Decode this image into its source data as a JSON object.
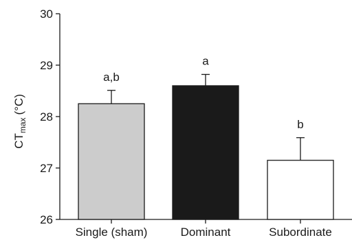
{
  "chart_data": {
    "type": "bar",
    "title": "",
    "ylabel_main": "CT",
    "ylabel_sub": "max",
    "ylabel_unit": "(°C)",
    "xlabel": "",
    "ylim": [
      26,
      30
    ],
    "yticks": [
      "26",
      "27",
      "28",
      "29",
      "30"
    ],
    "categories": [
      "Single (sham)",
      "Dominant",
      "Subordinate"
    ],
    "values": [
      28.25,
      28.6,
      27.15
    ],
    "errors": [
      0.26,
      0.22,
      0.44
    ],
    "significance_labels": [
      "a,b",
      "a",
      "b"
    ],
    "bar_colors": [
      "#cccccc",
      "#1a1a1a",
      "#ffffff"
    ],
    "grid": false
  }
}
